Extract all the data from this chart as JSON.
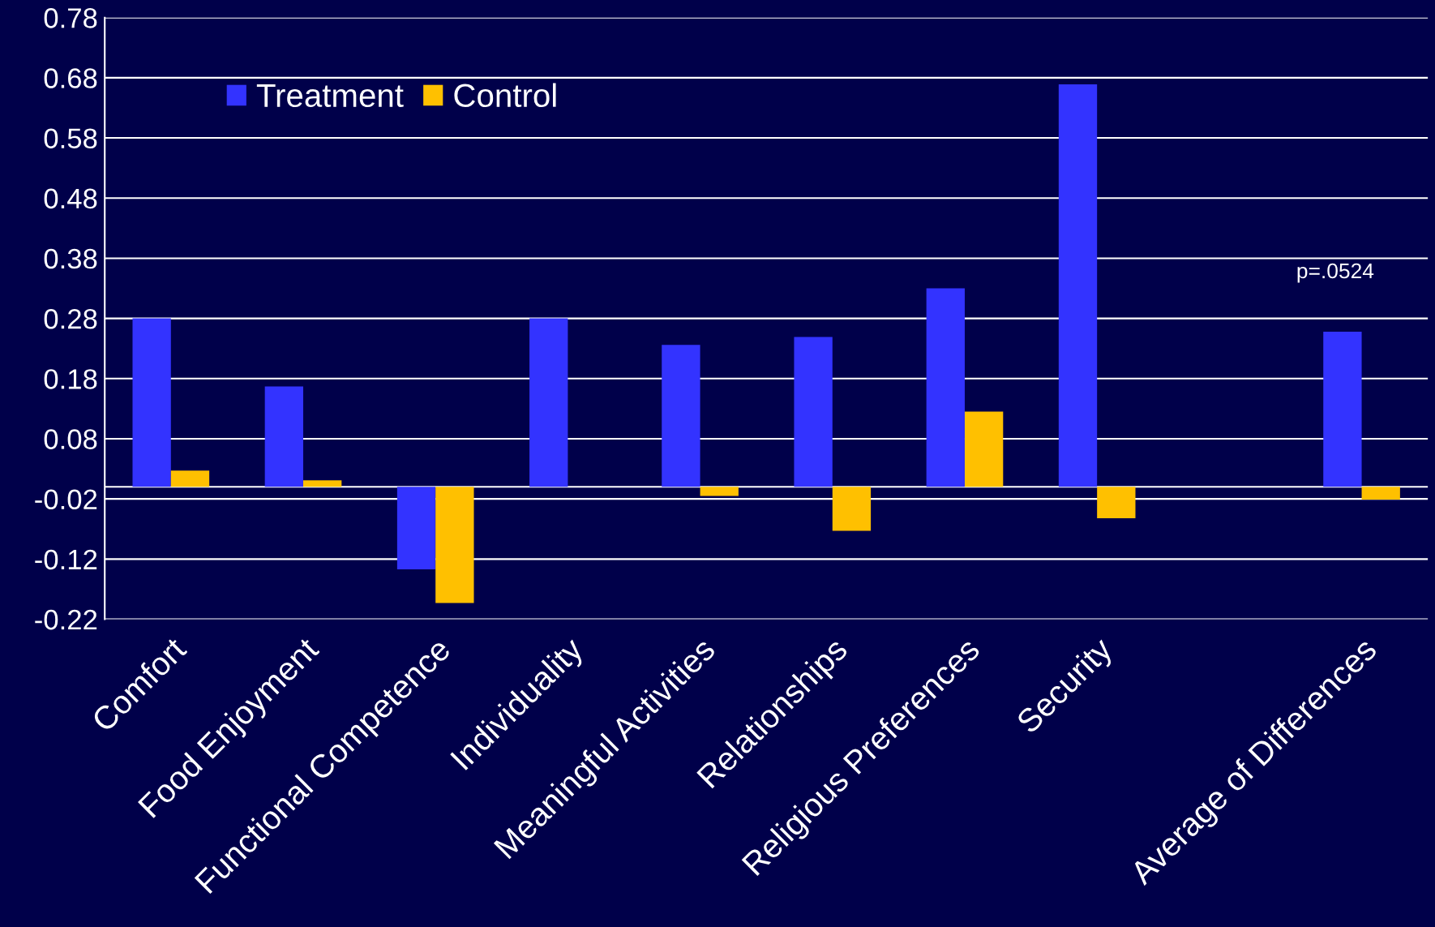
{
  "chart_data": {
    "type": "bar",
    "categories": [
      "Comfort",
      "Food Enjoyment",
      "Functional Competence",
      "Individuality",
      "Meaningful Activities",
      "Relationships",
      "Religious Preferences",
      "Security",
      null,
      "Average of Differences"
    ],
    "series": [
      {
        "name": "Treatment",
        "color": "#3333ff",
        "values": [
          0.28,
          0.167,
          -0.137,
          0.28,
          0.236,
          0.249,
          0.33,
          0.669,
          null,
          0.258
        ]
      },
      {
        "name": "Control",
        "color": "#ffc000",
        "values": [
          0.027,
          0.011,
          -0.193,
          null,
          -0.015,
          -0.073,
          0.125,
          -0.052,
          null,
          -0.021
        ]
      }
    ],
    "ylim": [
      -0.22,
      0.78
    ],
    "yticks": [
      {
        "value": -0.22,
        "label": "-0.22"
      },
      {
        "value": -0.12,
        "label": "-0.12"
      },
      {
        "value": -0.02,
        "label": "-0.02"
      },
      0.08,
      0.18,
      0.28,
      0.38,
      0.48,
      0.58,
      0.68,
      0.78
    ],
    "grid": "y",
    "legend": "top left",
    "annotations": [
      "p=.0524"
    ]
  }
}
